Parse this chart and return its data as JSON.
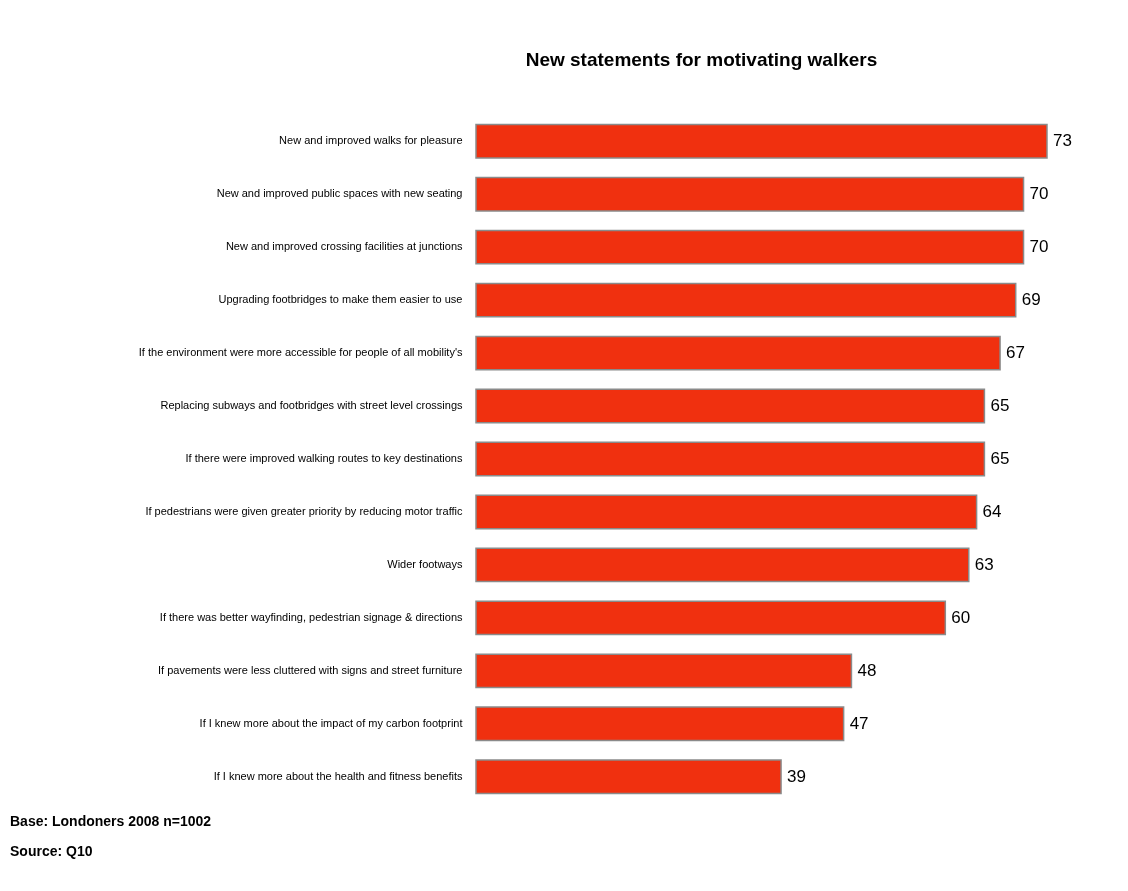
{
  "chart_data": {
    "type": "bar",
    "orientation": "horizontal",
    "title": "New statements for motivating walkers",
    "categories": [
      "New and improved walks for pleasure",
      "New and improved public spaces with new seating",
      "New and improved crossing facilities at junctions",
      "Upgrading footbridges to make them easier to use",
      "If the environment were more accessible for people of all mobility's",
      "Replacing subways and footbridges with street level crossings",
      "If there were improved walking routes to key destinations",
      "If pedestrians were given greater priority by reducing motor traffic",
      "Wider footways",
      "If there was better wayfinding, pedestrian signage & directions",
      "If pavements were less cluttered with signs and street furniture",
      "If I knew more about the impact of my carbon footprint",
      "If I knew more about the health and fitness benefits"
    ],
    "values": [
      73,
      70,
      70,
      69,
      67,
      65,
      65,
      64,
      63,
      60,
      48,
      47,
      39
    ],
    "color": "#f0300f",
    "data_labels": true,
    "annotations": [
      "Base: Londoners 2008 n=1002",
      "Source: Q10"
    ]
  }
}
